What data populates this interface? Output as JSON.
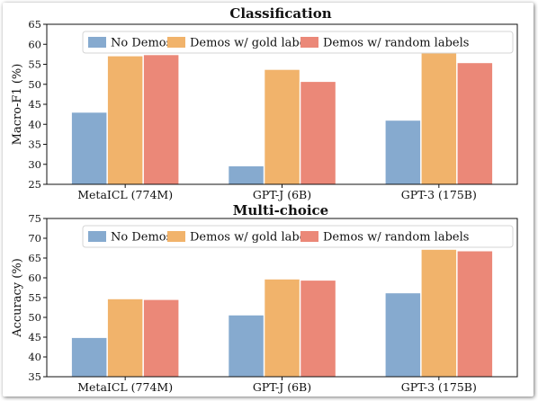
{
  "chart_data": [
    {
      "type": "bar",
      "title": "Classification",
      "ylabel": "Macro-F1 (%)",
      "xlabel": "",
      "ylim": [
        25,
        65
      ],
      "yticks": [
        25,
        30,
        35,
        40,
        45,
        50,
        55,
        60,
        65
      ],
      "categories": [
        "MetaICL (774M)",
        "GPT-J (6B)",
        "GPT-3 (175B)"
      ],
      "series": [
        {
          "name": "No Demos",
          "color": "#86aacf",
          "values": [
            42.9,
            29.5,
            40.9
          ]
        },
        {
          "name": "Demos w/ gold labels",
          "color": "#f1b36b",
          "values": [
            57.0,
            53.6,
            57.7
          ]
        },
        {
          "name": "Demos w/ random labels",
          "color": "#eb8878",
          "values": [
            57.3,
            50.6,
            55.3
          ]
        }
      ],
      "legend": "top",
      "grid": false
    },
    {
      "type": "bar",
      "title": "Multi-choice",
      "ylabel": "Accuracy (%)",
      "xlabel": "",
      "ylim": [
        35,
        75
      ],
      "yticks": [
        35,
        40,
        45,
        50,
        55,
        60,
        65,
        70,
        75
      ],
      "categories": [
        "MetaICL (774M)",
        "GPT-J (6B)",
        "GPT-3 (175B)"
      ],
      "series": [
        {
          "name": "No Demos",
          "color": "#86aacf",
          "values": [
            44.8,
            50.5,
            56.1
          ]
        },
        {
          "name": "Demos w/ gold labels",
          "color": "#f1b36b",
          "values": [
            54.6,
            59.6,
            67.1
          ]
        },
        {
          "name": "Demos w/ random labels",
          "color": "#eb8878",
          "values": [
            54.4,
            59.3,
            66.7
          ]
        }
      ],
      "legend": "top",
      "grid": false
    }
  ]
}
